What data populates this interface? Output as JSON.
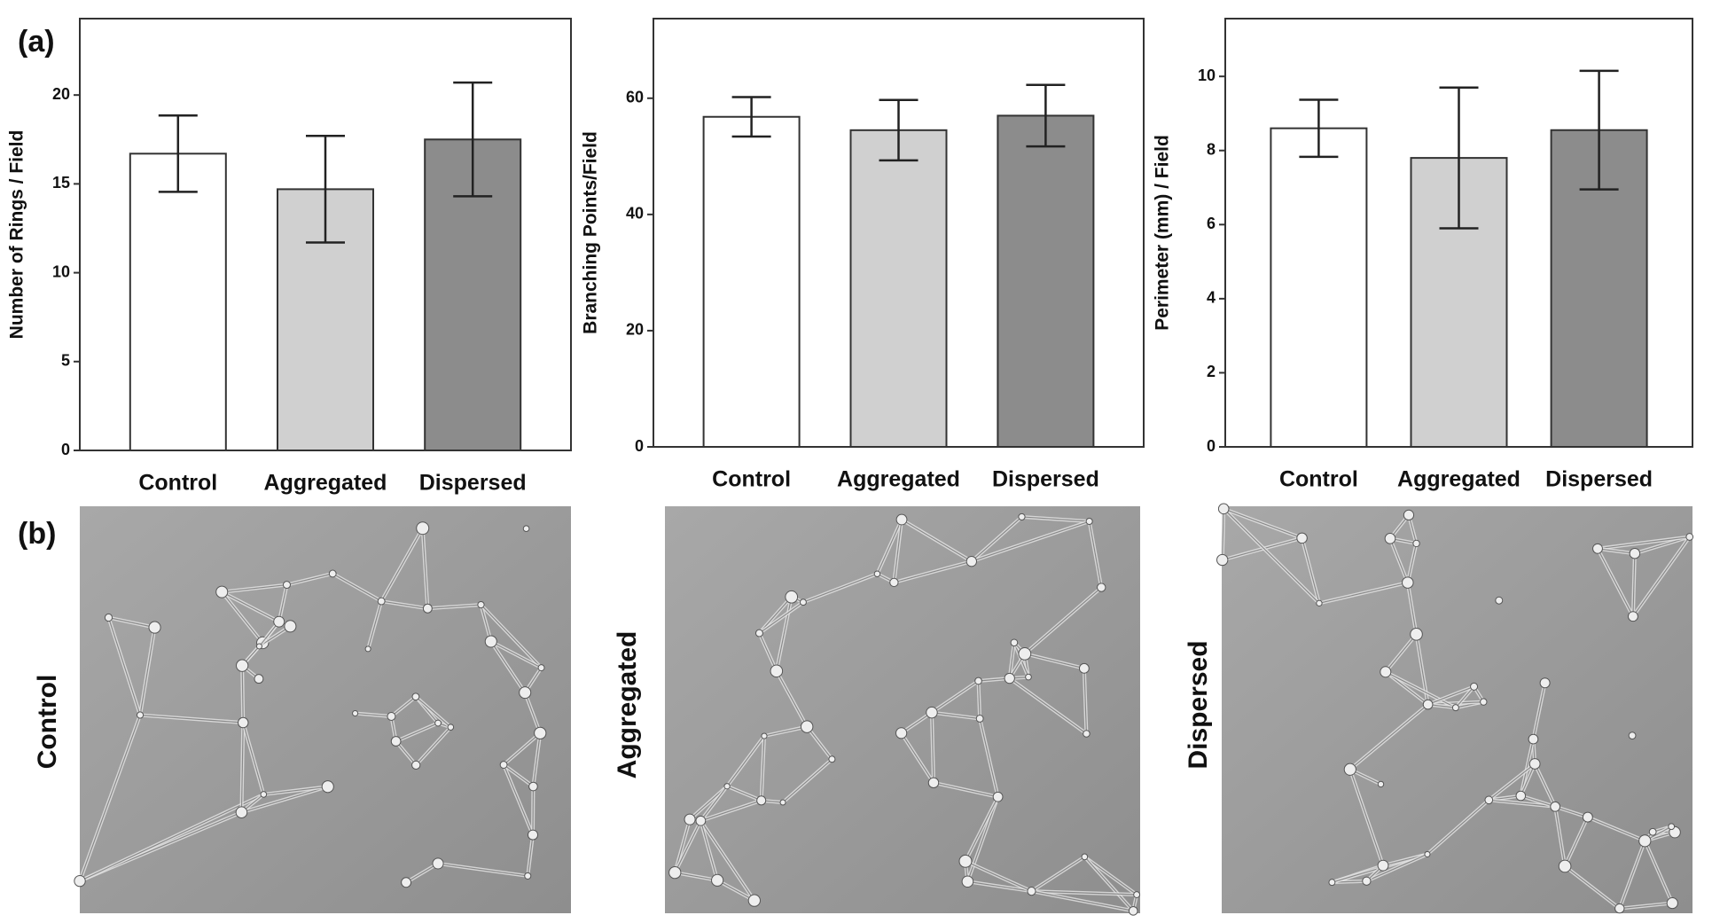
{
  "figure": {
    "panel_labels": [
      "(a)",
      "(b)"
    ],
    "image_captions": [
      "Control",
      "Aggregated",
      "Dispersed"
    ]
  },
  "chart_data": [
    {
      "type": "bar",
      "y_label": "Number of Rings / Field",
      "categories": [
        "Control",
        "Aggregated",
        "Dispersed"
      ],
      "values": [
        16.7,
        14.7,
        17.5
      ],
      "errors": [
        2.15,
        3.0,
        3.2
      ],
      "colors": [
        "#ffffff",
        "#d0d0d0",
        "#8c8c8c"
      ],
      "ylim": [
        0,
        24.3
      ],
      "yticks": [
        0,
        5,
        10,
        15,
        20
      ]
    },
    {
      "type": "bar",
      "y_label": "Branching Points/Field",
      "categories": [
        "Control",
        "Aggregated",
        "Dispersed"
      ],
      "values": [
        56.8,
        54.5,
        57.0
      ],
      "errors": [
        3.4,
        5.2,
        5.3
      ],
      "colors": [
        "#ffffff",
        "#d0d0d0",
        "#8c8c8c"
      ],
      "ylim": [
        0,
        73.7
      ],
      "yticks": [
        0,
        20,
        40,
        60
      ]
    },
    {
      "type": "bar",
      "y_label": "Perimeter (mm) / Field",
      "categories": [
        "Control",
        "Aggregated",
        "Dispersed"
      ],
      "values": [
        8.6,
        7.8,
        8.55
      ],
      "errors": [
        0.77,
        1.9,
        1.6
      ],
      "colors": [
        "#ffffff",
        "#d0d0d0",
        "#8c8c8c"
      ],
      "ylim": [
        0,
        11.56
      ],
      "yticks": [
        0,
        2,
        4,
        6,
        8,
        10
      ]
    }
  ]
}
